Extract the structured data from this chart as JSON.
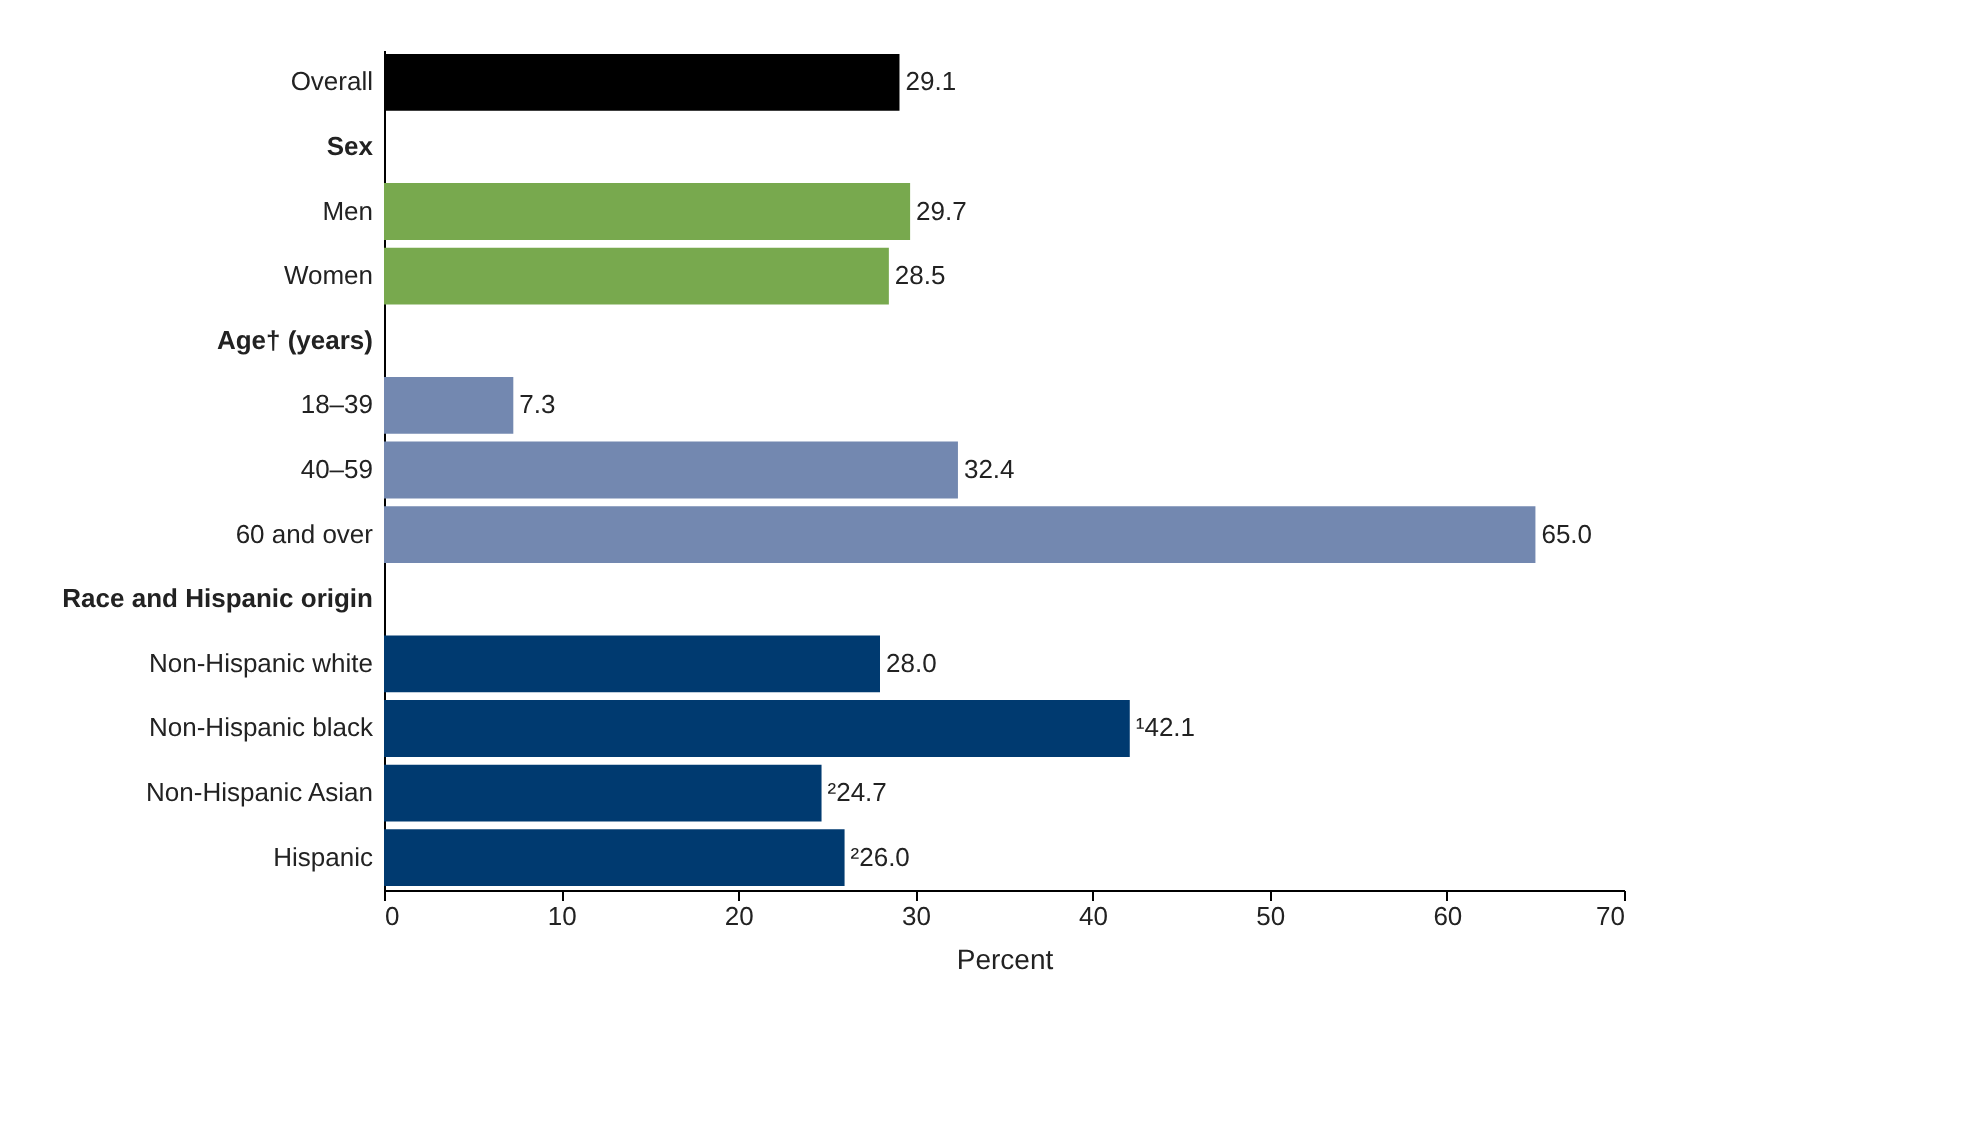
{
  "chart_data": {
    "type": "bar",
    "orientation": "horizontal",
    "categories": [
      "Overall",
      "Sex",
      "Men",
      "Women",
      "Age† (years)",
      "18–39",
      "40–59",
      "60 and over",
      "Race and Hispanic origin",
      "Non-Hispanic white",
      "Non-Hispanic black",
      "Non-Hispanic Asian",
      "Hispanic"
    ],
    "values": [
      29.1,
      null,
      29.7,
      28.5,
      null,
      7.3,
      32.4,
      65.0,
      null,
      28.0,
      42.1,
      24.7,
      26.0
    ],
    "colors": [
      "#000000",
      null,
      "#78a94e",
      "#78a94e",
      null,
      "#7388b0",
      "#7388b0",
      "#7388b0",
      null,
      "#003a70",
      "#003a70",
      "#003a70",
      "#003a70"
    ],
    "value_labels": [
      "29.1",
      null,
      "29.7",
      "28.5",
      null,
      "7.3",
      "32.4",
      "65.0",
      null,
      "28.0",
      "¹42.1",
      "²24.7",
      "²26.0"
    ],
    "xlabel": "Percent",
    "xlim": [
      0,
      70
    ],
    "xticks": [
      0,
      10,
      20,
      30,
      40,
      50,
      60,
      70
    ],
    "grid": false
  }
}
